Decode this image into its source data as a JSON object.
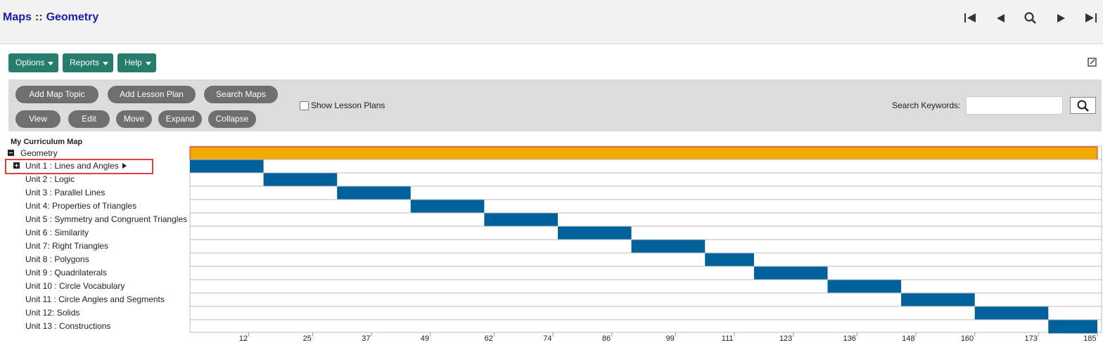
{
  "header": {
    "title_section": "Maps",
    "separator": "::",
    "title_page": "Geometry"
  },
  "menu": [
    "Options",
    "Reports",
    "Help"
  ],
  "toolbar": {
    "buttons_row1": [
      "Add Map Topic",
      "Add Lesson Plan",
      "Search Maps"
    ],
    "buttons_row2": [
      "View",
      "Edit",
      "Move",
      "Expand",
      "Collapse"
    ],
    "checkbox_label": "Show Lesson Plans",
    "search_label": "Search Keywords:"
  },
  "tree": {
    "heading": "My Curriculum Map",
    "root": "Geometry"
  },
  "gantt": {
    "root": {
      "start": 0,
      "end": 185,
      "color": "#f0aa00"
    },
    "color": "#00629b",
    "rows": [
      {
        "label": "Unit 1 : Lines and Angles",
        "start": 0,
        "end": 15
      },
      {
        "label": "Unit 2 : Logic",
        "start": 15,
        "end": 30
      },
      {
        "label": "Unit 3 : Parallel Lines",
        "start": 30,
        "end": 45
      },
      {
        "label": "Unit 4: Properties of Triangles",
        "start": 45,
        "end": 60
      },
      {
        "label": "Unit 5 : Symmetry and Congruent Triangles",
        "start": 60,
        "end": 75
      },
      {
        "label": "Unit 6 : Similarity",
        "start": 75,
        "end": 90
      },
      {
        "label": "Unit 7: Right Triangles",
        "start": 90,
        "end": 105
      },
      {
        "label": "Unit 8 : Polygons",
        "start": 105,
        "end": 115
      },
      {
        "label": "Unit 9 : Quadrilaterals",
        "start": 115,
        "end": 130
      },
      {
        "label": "Unit 10 : Circle Vocabulary",
        "start": 130,
        "end": 145
      },
      {
        "label": "Unit 11 : Circle Angles and Segments",
        "start": 145,
        "end": 160
      },
      {
        "label": "Unit 12: Solids",
        "start": 160,
        "end": 175
      },
      {
        "label": "Unit 13 : Constructions",
        "start": 175,
        "end": 185
      }
    ],
    "xlim": [
      0,
      185
    ],
    "xticks": [
      12,
      25,
      37,
      49,
      62,
      74,
      86,
      99,
      111,
      123,
      136,
      148,
      160,
      173,
      185
    ]
  }
}
